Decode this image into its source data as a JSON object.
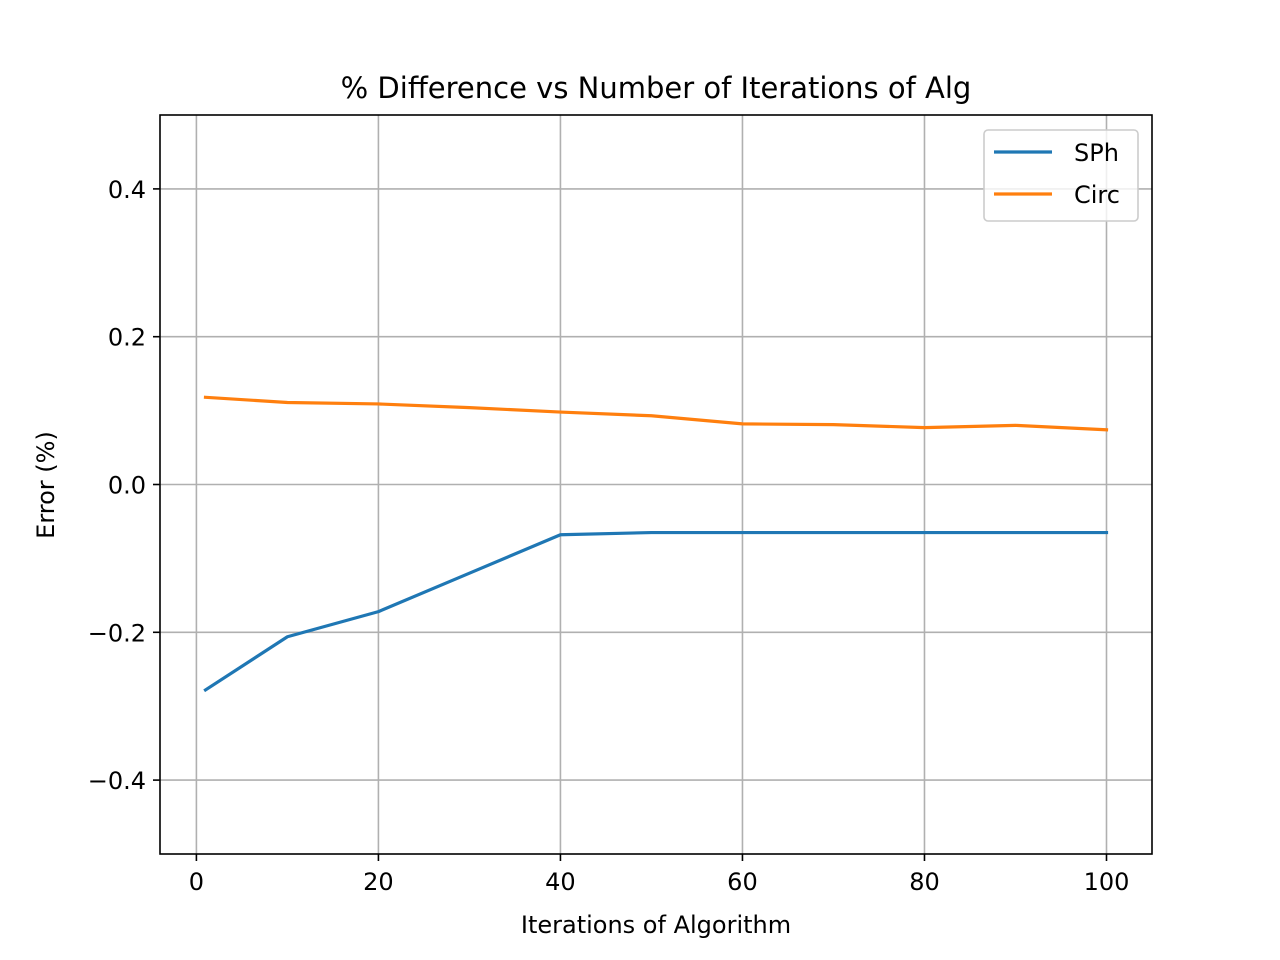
{
  "chart_data": {
    "type": "line",
    "title": "% Difference vs Number of Iterations of Alg",
    "xlabel": "Iterations of Algorithm",
    "ylabel": "Error (%)",
    "xlim": [
      -4,
      105
    ],
    "ylim": [
      -0.5,
      0.5
    ],
    "xticks": [
      0,
      20,
      40,
      60,
      80,
      100
    ],
    "xtick_labels": [
      "0",
      "20",
      "40",
      "60",
      "80",
      "100"
    ],
    "yticks": [
      -0.4,
      -0.2,
      0.0,
      0.2,
      0.4
    ],
    "ytick_labels": [
      "−0.4",
      "−0.2",
      "0.0",
      "0.2",
      "0.4"
    ],
    "grid": true,
    "legend_position": "top-right",
    "x": [
      1,
      10,
      20,
      30,
      40,
      50,
      60,
      70,
      80,
      90,
      100
    ],
    "series": [
      {
        "name": "SPh",
        "color": "#1f77b4",
        "values": [
          -0.278,
          -0.206,
          -0.172,
          -0.12,
          -0.068,
          -0.065,
          -0.065,
          -0.065,
          -0.065,
          -0.065,
          -0.065
        ]
      },
      {
        "name": "Circ",
        "color": "#ff7f0e",
        "values": [
          0.118,
          0.111,
          0.109,
          0.104,
          0.098,
          0.093,
          0.082,
          0.081,
          0.077,
          0.08,
          0.074
        ]
      }
    ]
  }
}
